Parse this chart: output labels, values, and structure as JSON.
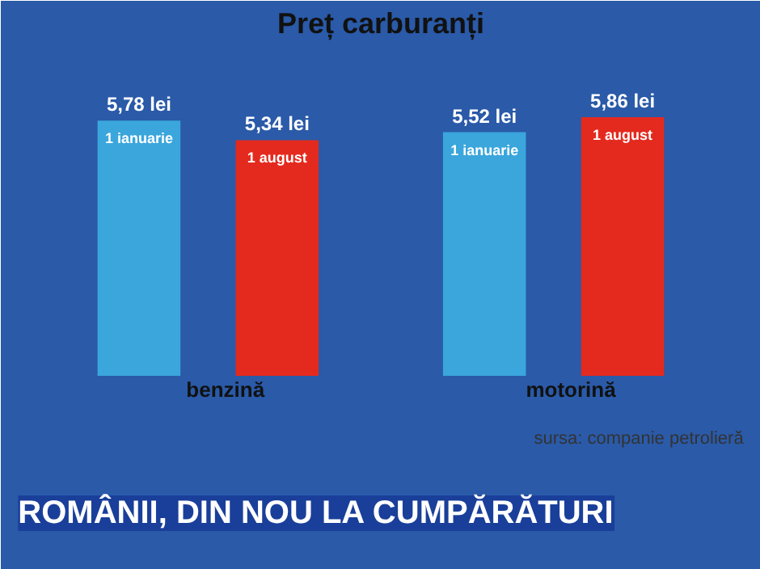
{
  "chart_data": {
    "type": "bar",
    "title": "Preț carburanți",
    "categories": [
      "benzină",
      "motorină"
    ],
    "series": [
      {
        "name": "1 ianuarie",
        "color": "#3aa6dc",
        "values": [
          5.78,
          5.52
        ],
        "value_labels": [
          "5,78 lei",
          "5,52 lei"
        ]
      },
      {
        "name": "1 august",
        "color": "#e42a1e",
        "values": [
          5.34,
          5.86
        ],
        "value_labels": [
          "5,34 lei",
          "5,86 lei"
        ]
      }
    ],
    "annotations": [
      "sursa: companie petrolieră",
      "ROMÂNII, DIN NOU LA CUMPĂRĂTURI"
    ]
  }
}
